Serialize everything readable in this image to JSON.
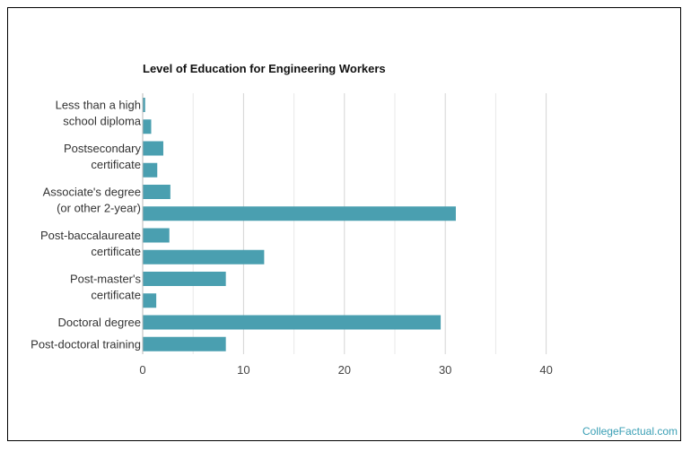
{
  "chart_data": {
    "type": "bar",
    "orientation": "horizontal",
    "title": "Level of Education for Engineering Workers",
    "xlabel": "",
    "ylabel": "",
    "xlim": [
      0,
      40
    ],
    "xticks": [
      0,
      10,
      20,
      30,
      40
    ],
    "grid": true,
    "bar_color": "#4a9fb0",
    "rows": [
      {
        "label": "Less than a high school diploma",
        "value": 0.2
      },
      {
        "label": "",
        "value": 0.8
      },
      {
        "label": "Postsecondary certificate",
        "value": 2.0
      },
      {
        "label": "",
        "value": 1.4
      },
      {
        "label": "Associate's degree (or other 2-year)",
        "value": 2.7
      },
      {
        "label": "",
        "value": 31.0
      },
      {
        "label": "Post-baccalaureate certificate",
        "value": 2.6
      },
      {
        "label": "",
        "value": 12.0
      },
      {
        "label": "Post-master's certificate",
        "value": 8.2
      },
      {
        "label": "",
        "value": 1.3
      },
      {
        "label": "Doctoral degree",
        "value": 29.5
      },
      {
        "label": "Post-doctoral training",
        "value": 8.2
      }
    ]
  },
  "credit": "CollegeFactual.com"
}
